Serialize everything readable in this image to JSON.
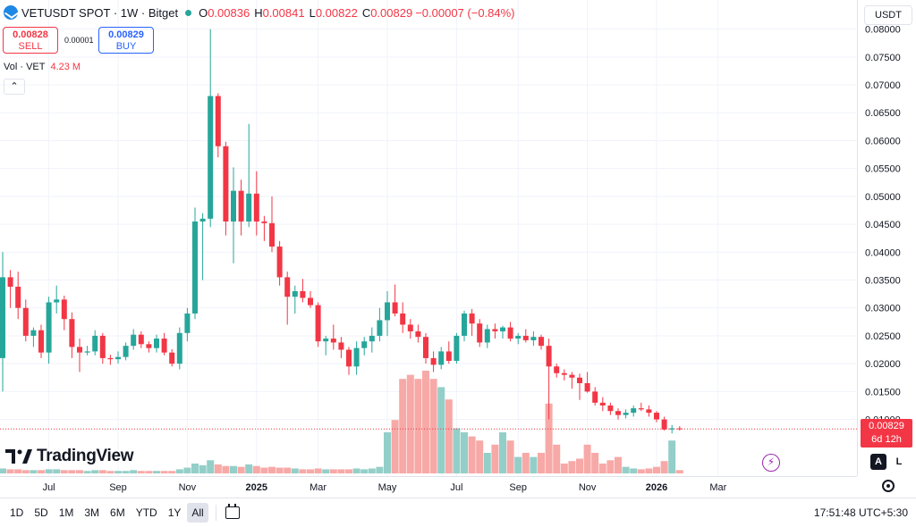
{
  "legend": {
    "symbol": "VETUSDT SPOT · 1W · Bitget",
    "open_label": "O",
    "open": "0.00836",
    "high_label": "H",
    "high": "0.00841",
    "low_label": "L",
    "low": "0.00822",
    "close_label": "C",
    "close": "0.00829",
    "change": "−0.00007 (−0.84%)"
  },
  "trade": {
    "sell_price": "0.00828",
    "sell_label": "SELL",
    "spread": "0.00001",
    "buy_price": "0.00829",
    "buy_label": "BUY"
  },
  "volume_legend": {
    "label": "Vol · VET",
    "value": "4.23 M"
  },
  "currency": "USDT",
  "brand": "TradingView",
  "current_price": {
    "price": "0.00829",
    "countdown": "6d 12h"
  },
  "scale_buttons": {
    "auto": "A",
    "log": "L"
  },
  "timeframes": [
    "1D",
    "5D",
    "1M",
    "3M",
    "6M",
    "YTD",
    "1Y",
    "All"
  ],
  "active_timeframe": "All",
  "clock": "17:51:48 UTC+5:30",
  "colors": {
    "up": "#26a69a",
    "down": "#f23645",
    "up_vol": "#93cfc8",
    "down_vol": "#f7a9a7",
    "grid": "#f0f3fa"
  },
  "chart_data": {
    "type": "candlestick",
    "interval": "1W",
    "y_range": [
      0,
      0.0825
    ],
    "y_ticks": [
      "0.08000",
      "0.07500",
      "0.07000",
      "0.06500",
      "0.06000",
      "0.05500",
      "0.05000",
      "0.04500",
      "0.04000",
      "0.03500",
      "0.03000",
      "0.02500",
      "0.02000",
      "0.01500",
      "0.01000"
    ],
    "x_ticks": [
      {
        "label": "Jul",
        "bar": 6,
        "bold": false
      },
      {
        "label": "Sep",
        "bar": 15,
        "bold": false
      },
      {
        "label": "Nov",
        "bar": 24,
        "bold": false
      },
      {
        "label": "2025",
        "bar": 33,
        "bold": true
      },
      {
        "label": "Mar",
        "bar": 41,
        "bold": false
      },
      {
        "label": "May",
        "bar": 50,
        "bold": false
      },
      {
        "label": "Jul",
        "bar": 59,
        "bold": false
      },
      {
        "label": "Sep",
        "bar": 67,
        "bold": false
      },
      {
        "label": "Nov",
        "bar": 76,
        "bold": false
      },
      {
        "label": "2026",
        "bar": 85,
        "bold": true
      },
      {
        "label": "Mar",
        "bar": 93,
        "bold": false
      }
    ],
    "candles": [
      {
        "o": 0.021,
        "h": 0.04,
        "l": 0.015,
        "c": 0.0355,
        "v": 6
      },
      {
        "o": 0.0355,
        "h": 0.0368,
        "l": 0.03,
        "c": 0.0338,
        "v": 5
      },
      {
        "o": 0.0338,
        "h": 0.0365,
        "l": 0.028,
        "c": 0.03,
        "v": 5
      },
      {
        "o": 0.03,
        "h": 0.0315,
        "l": 0.024,
        "c": 0.025,
        "v": 4
      },
      {
        "o": 0.025,
        "h": 0.0265,
        "l": 0.023,
        "c": 0.026,
        "v": 4
      },
      {
        "o": 0.026,
        "h": 0.027,
        "l": 0.021,
        "c": 0.022,
        "v": 4
      },
      {
        "o": 0.022,
        "h": 0.032,
        "l": 0.02,
        "c": 0.031,
        "v": 5
      },
      {
        "o": 0.031,
        "h": 0.034,
        "l": 0.029,
        "c": 0.0315,
        "v": 5
      },
      {
        "o": 0.0315,
        "h": 0.0322,
        "l": 0.026,
        "c": 0.028,
        "v": 4
      },
      {
        "o": 0.028,
        "h": 0.0292,
        "l": 0.021,
        "c": 0.023,
        "v": 4
      },
      {
        "o": 0.023,
        "h": 0.0245,
        "l": 0.0185,
        "c": 0.022,
        "v": 4
      },
      {
        "o": 0.022,
        "h": 0.0232,
        "l": 0.0215,
        "c": 0.0222,
        "v": 3
      },
      {
        "o": 0.0222,
        "h": 0.026,
        "l": 0.0215,
        "c": 0.025,
        "v": 4
      },
      {
        "o": 0.025,
        "h": 0.0255,
        "l": 0.02,
        "c": 0.021,
        "v": 4
      },
      {
        "o": 0.021,
        "h": 0.0216,
        "l": 0.0198,
        "c": 0.0208,
        "v": 3
      },
      {
        "o": 0.0208,
        "h": 0.0222,
        "l": 0.02,
        "c": 0.0212,
        "v": 3
      },
      {
        "o": 0.0212,
        "h": 0.0238,
        "l": 0.0206,
        "c": 0.0232,
        "v": 3
      },
      {
        "o": 0.0232,
        "h": 0.0262,
        "l": 0.0225,
        "c": 0.0252,
        "v": 4
      },
      {
        "o": 0.0252,
        "h": 0.0258,
        "l": 0.0228,
        "c": 0.0235,
        "v": 3
      },
      {
        "o": 0.0235,
        "h": 0.024,
        "l": 0.022,
        "c": 0.0228,
        "v": 3
      },
      {
        "o": 0.0228,
        "h": 0.0252,
        "l": 0.022,
        "c": 0.0245,
        "v": 3
      },
      {
        "o": 0.0245,
        "h": 0.0255,
        "l": 0.0215,
        "c": 0.022,
        "v": 3
      },
      {
        "o": 0.022,
        "h": 0.0226,
        "l": 0.0195,
        "c": 0.02,
        "v": 3
      },
      {
        "o": 0.02,
        "h": 0.0265,
        "l": 0.019,
        "c": 0.0255,
        "v": 5
      },
      {
        "o": 0.0255,
        "h": 0.03,
        "l": 0.024,
        "c": 0.029,
        "v": 7
      },
      {
        "o": 0.029,
        "h": 0.048,
        "l": 0.028,
        "c": 0.0455,
        "v": 12
      },
      {
        "o": 0.0455,
        "h": 0.047,
        "l": 0.035,
        "c": 0.046,
        "v": 10
      },
      {
        "o": 0.046,
        "h": 0.08,
        "l": 0.0445,
        "c": 0.068,
        "v": 16
      },
      {
        "o": 0.068,
        "h": 0.0685,
        "l": 0.057,
        "c": 0.059,
        "v": 11
      },
      {
        "o": 0.059,
        "h": 0.0598,
        "l": 0.043,
        "c": 0.0455,
        "v": 9
      },
      {
        "o": 0.0455,
        "h": 0.0552,
        "l": 0.038,
        "c": 0.051,
        "v": 9
      },
      {
        "o": 0.051,
        "h": 0.053,
        "l": 0.043,
        "c": 0.0455,
        "v": 8
      },
      {
        "o": 0.0455,
        "h": 0.063,
        "l": 0.0445,
        "c": 0.0505,
        "v": 11
      },
      {
        "o": 0.0505,
        "h": 0.0545,
        "l": 0.043,
        "c": 0.0455,
        "v": 9
      },
      {
        "o": 0.0455,
        "h": 0.0465,
        "l": 0.042,
        "c": 0.0452,
        "v": 7
      },
      {
        "o": 0.0452,
        "h": 0.05,
        "l": 0.04,
        "c": 0.041,
        "v": 8
      },
      {
        "o": 0.041,
        "h": 0.042,
        "l": 0.034,
        "c": 0.0355,
        "v": 7
      },
      {
        "o": 0.0355,
        "h": 0.0365,
        "l": 0.027,
        "c": 0.032,
        "v": 7
      },
      {
        "o": 0.032,
        "h": 0.034,
        "l": 0.029,
        "c": 0.033,
        "v": 6
      },
      {
        "o": 0.033,
        "h": 0.0352,
        "l": 0.031,
        "c": 0.0318,
        "v": 5
      },
      {
        "o": 0.0318,
        "h": 0.033,
        "l": 0.03,
        "c": 0.0305,
        "v": 5
      },
      {
        "o": 0.0305,
        "h": 0.031,
        "l": 0.023,
        "c": 0.024,
        "v": 6
      },
      {
        "o": 0.024,
        "h": 0.025,
        "l": 0.0215,
        "c": 0.0245,
        "v": 5
      },
      {
        "o": 0.0245,
        "h": 0.027,
        "l": 0.0225,
        "c": 0.0238,
        "v": 5
      },
      {
        "o": 0.0238,
        "h": 0.0248,
        "l": 0.021,
        "c": 0.0225,
        "v": 5
      },
      {
        "o": 0.0225,
        "h": 0.023,
        "l": 0.018,
        "c": 0.0195,
        "v": 5
      },
      {
        "o": 0.0195,
        "h": 0.024,
        "l": 0.018,
        "c": 0.0228,
        "v": 6
      },
      {
        "o": 0.0228,
        "h": 0.0248,
        "l": 0.0215,
        "c": 0.024,
        "v": 5
      },
      {
        "o": 0.024,
        "h": 0.0265,
        "l": 0.022,
        "c": 0.025,
        "v": 6
      },
      {
        "o": 0.025,
        "h": 0.03,
        "l": 0.024,
        "c": 0.0278,
        "v": 8
      },
      {
        "o": 0.0278,
        "h": 0.033,
        "l": 0.025,
        "c": 0.031,
        "v": 50
      },
      {
        "o": 0.031,
        "h": 0.0342,
        "l": 0.0285,
        "c": 0.029,
        "v": 65
      },
      {
        "o": 0.029,
        "h": 0.031,
        "l": 0.0255,
        "c": 0.027,
        "v": 115
      },
      {
        "o": 0.027,
        "h": 0.028,
        "l": 0.0245,
        "c": 0.0258,
        "v": 120
      },
      {
        "o": 0.0258,
        "h": 0.027,
        "l": 0.0238,
        "c": 0.0248,
        "v": 115
      },
      {
        "o": 0.0248,
        "h": 0.0255,
        "l": 0.02,
        "c": 0.021,
        "v": 125
      },
      {
        "o": 0.021,
        "h": 0.0222,
        "l": 0.0185,
        "c": 0.0198,
        "v": 115
      },
      {
        "o": 0.0198,
        "h": 0.023,
        "l": 0.019,
        "c": 0.0222,
        "v": 105
      },
      {
        "o": 0.0222,
        "h": 0.024,
        "l": 0.02,
        "c": 0.0205,
        "v": 90
      },
      {
        "o": 0.0205,
        "h": 0.0255,
        "l": 0.02,
        "c": 0.025,
        "v": 55
      },
      {
        "o": 0.025,
        "h": 0.0295,
        "l": 0.024,
        "c": 0.029,
        "v": 50
      },
      {
        "o": 0.029,
        "h": 0.0298,
        "l": 0.025,
        "c": 0.0272,
        "v": 45
      },
      {
        "o": 0.0272,
        "h": 0.028,
        "l": 0.023,
        "c": 0.0238,
        "v": 40
      },
      {
        "o": 0.0238,
        "h": 0.027,
        "l": 0.0228,
        "c": 0.0262,
        "v": 25
      },
      {
        "o": 0.0262,
        "h": 0.0272,
        "l": 0.0245,
        "c": 0.0258,
        "v": 35
      },
      {
        "o": 0.0258,
        "h": 0.0268,
        "l": 0.0245,
        "c": 0.0265,
        "v": 50
      },
      {
        "o": 0.0265,
        "h": 0.0275,
        "l": 0.024,
        "c": 0.0245,
        "v": 40
      },
      {
        "o": 0.0245,
        "h": 0.0255,
        "l": 0.0235,
        "c": 0.025,
        "v": 20
      },
      {
        "o": 0.025,
        "h": 0.0262,
        "l": 0.0238,
        "c": 0.0242,
        "v": 25
      },
      {
        "o": 0.0242,
        "h": 0.0258,
        "l": 0.0232,
        "c": 0.0248,
        "v": 20
      },
      {
        "o": 0.0248,
        "h": 0.0252,
        "l": 0.0225,
        "c": 0.0232,
        "v": 25
      },
      {
        "o": 0.0232,
        "h": 0.0245,
        "l": 0.01,
        "c": 0.0195,
        "v": 85
      },
      {
        "o": 0.0195,
        "h": 0.02,
        "l": 0.0175,
        "c": 0.0183,
        "v": 35
      },
      {
        "o": 0.0183,
        "h": 0.019,
        "l": 0.017,
        "c": 0.018,
        "v": 12
      },
      {
        "o": 0.018,
        "h": 0.0185,
        "l": 0.0155,
        "c": 0.0175,
        "v": 15
      },
      {
        "o": 0.0175,
        "h": 0.0182,
        "l": 0.0135,
        "c": 0.0165,
        "v": 18
      },
      {
        "o": 0.0165,
        "h": 0.0185,
        "l": 0.0148,
        "c": 0.015,
        "v": 35
      },
      {
        "o": 0.015,
        "h": 0.0158,
        "l": 0.0125,
        "c": 0.013,
        "v": 25
      },
      {
        "o": 0.013,
        "h": 0.014,
        "l": 0.0115,
        "c": 0.0125,
        "v": 12
      },
      {
        "o": 0.0125,
        "h": 0.013,
        "l": 0.0108,
        "c": 0.0115,
        "v": 16
      },
      {
        "o": 0.0115,
        "h": 0.012,
        "l": 0.01,
        "c": 0.0108,
        "v": 20
      },
      {
        "o": 0.0108,
        "h": 0.0118,
        "l": 0.0102,
        "c": 0.0112,
        "v": 8
      },
      {
        "o": 0.0112,
        "h": 0.0125,
        "l": 0.0105,
        "c": 0.012,
        "v": 6
      },
      {
        "o": 0.012,
        "h": 0.013,
        "l": 0.0115,
        "c": 0.0118,
        "v": 5
      },
      {
        "o": 0.0118,
        "h": 0.0125,
        "l": 0.0105,
        "c": 0.0112,
        "v": 6
      },
      {
        "o": 0.0112,
        "h": 0.0115,
        "l": 0.0095,
        "c": 0.01,
        "v": 8
      },
      {
        "o": 0.01,
        "h": 0.0105,
        "l": 0.008,
        "c": 0.0082,
        "v": 15
      },
      {
        "o": 0.0082,
        "h": 0.009,
        "l": 0.0075,
        "c": 0.0084,
        "v": 40
      },
      {
        "o": 0.0084,
        "h": 0.0088,
        "l": 0.008,
        "c": 0.0083,
        "v": 4
      }
    ]
  }
}
